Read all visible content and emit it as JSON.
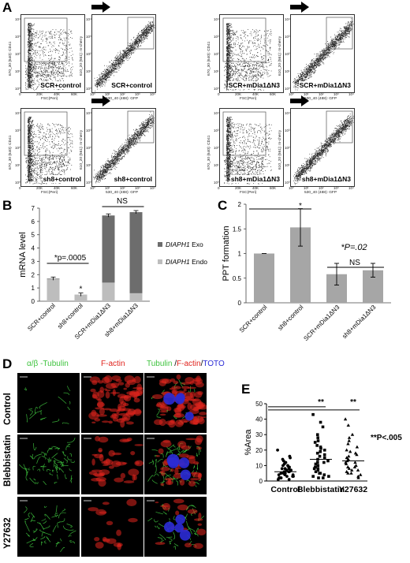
{
  "panels": {
    "A": "A",
    "B": "B",
    "C": "C",
    "D": "D",
    "E": "E"
  },
  "flow": {
    "left_plot": {
      "ylabel": "670_30 (640): CD41",
      "xlabel": "FSC(Peri)",
      "xticks": [
        "0",
        "20K",
        "40K",
        "60K"
      ],
      "yticks": [
        "10⁰",
        "10¹",
        "10²",
        "10³",
        "10⁴"
      ]
    },
    "right_plot": {
      "ylabel": "610_20 (561): m-cherry",
      "xlabel": "530_40 (488): GFP",
      "ticks": [
        "10⁰",
        "10¹",
        "10²",
        "10³",
        "10⁴"
      ]
    },
    "labels": [
      "SCR+control",
      "SCR+mDia1ΔN3",
      "sh8+control",
      "sh8+mDia1ΔN3"
    ]
  },
  "chart_data": [
    {
      "type": "bar",
      "panel": "B",
      "categories": [
        "SCR+control",
        "sh8+control",
        "SCR+mDia1ΔN3",
        "sh8+mDia1ΔN3"
      ],
      "series": [
        {
          "name": "DIAPH1 Endo",
          "values": [
            1.65,
            0.5,
            1.4,
            0.6
          ]
        },
        {
          "name": "DIAPH1 Exo",
          "values": [
            0.05,
            0.0,
            5.05,
            6.1
          ]
        }
      ],
      "ylabel": "mRNA level",
      "ylim": [
        0,
        7
      ],
      "yticks": [
        0,
        1,
        2,
        3,
        4,
        5,
        6,
        7
      ],
      "annotations": [
        "*p=.0005",
        "*",
        "NS"
      ],
      "legend_position": "right"
    },
    {
      "type": "bar",
      "panel": "C",
      "categories": [
        "SCR+control",
        "sh8+control",
        "SCR+mDia1ΔN3",
        "sh8+mDia1ΔN3"
      ],
      "values": [
        1.0,
        1.53,
        0.58,
        0.66
      ],
      "errors": [
        0.0,
        0.38,
        0.22,
        0.14
      ],
      "ylabel": "PPT formation",
      "ylim": [
        0,
        2
      ],
      "yticks": [
        0,
        0.5,
        1,
        1.5,
        2
      ],
      "annotations": [
        "*",
        "*P=.02",
        "NS"
      ]
    },
    {
      "type": "scatter",
      "panel": "E",
      "categories": [
        "Control",
        "Blebbistatin",
        "Y27632"
      ],
      "ylabel": "%Area",
      "ylim": [
        0,
        50
      ],
      "yticks": [
        0,
        10,
        20,
        30,
        40,
        50
      ],
      "means": [
        6,
        14,
        13
      ],
      "series": [
        {
          "category": "Control",
          "marker": "circle",
          "values": [
            20,
            16,
            15,
            14,
            13,
            12,
            12,
            11,
            10,
            10,
            9,
            9,
            8,
            8,
            8,
            7,
            7,
            7,
            6,
            6,
            6,
            5,
            5,
            5,
            4,
            4,
            4,
            3,
            3,
            3,
            2,
            2,
            2,
            1,
            1
          ]
        },
        {
          "category": "Blebbistatin",
          "marker": "square",
          "values": [
            43,
            38,
            35,
            30,
            28,
            26,
            25,
            23,
            22,
            21,
            20,
            19,
            18,
            17,
            16,
            15,
            14,
            13,
            12,
            12,
            11,
            10,
            9,
            8,
            8,
            7,
            6,
            5,
            5,
            4,
            3,
            3,
            2,
            2
          ]
        },
        {
          "category": "Y27632",
          "marker": "triangle",
          "values": [
            40,
            36,
            30,
            28,
            26,
            24,
            22,
            20,
            19,
            18,
            17,
            16,
            15,
            14,
            13,
            12,
            12,
            11,
            10,
            9,
            9,
            8,
            7,
            7,
            6,
            5,
            5,
            4,
            3,
            2
          ]
        }
      ],
      "annotations": [
        "**",
        "**",
        "**P<.005"
      ]
    }
  ],
  "chart_text": {
    "B": {
      "ylabel": "mRNA level",
      "pval": "*p=.0005",
      "star": "*",
      "ns": "NS",
      "legend": [
        {
          "italic": "DIAPH1",
          "rest": " Exo",
          "color": "#6d6d6d"
        },
        {
          "italic": "DIAPH1",
          "rest": " Endo",
          "color": "#bdbdbd"
        }
      ]
    },
    "C": {
      "ylabel": "PPT formation",
      "pval": "*P=.02",
      "star": "*",
      "ns": "NS"
    },
    "E": {
      "ylabel": "%Area",
      "stars1": "**",
      "stars2": "**",
      "pval": "**P<.005"
    }
  },
  "micro": {
    "columns": [
      {
        "parts": [
          {
            "text": "α/β -Tubulin",
            "color": "#3ec33e"
          }
        ]
      },
      {
        "parts": [
          {
            "text": "F-actin",
            "color": "#e0241e"
          }
        ]
      },
      {
        "parts": [
          {
            "text": "Tubulin ",
            "color": "#3ec33e"
          },
          {
            "text": "/",
            "color": "#000000"
          },
          {
            "text": "F-actin",
            "color": "#e0241e"
          },
          {
            "text": "/",
            "color": "#000000"
          },
          {
            "text": "TOTO",
            "color": "#2b2bd6"
          }
        ]
      }
    ],
    "rows": [
      "Control",
      "Blebbistatin",
      "Y27632"
    ]
  },
  "colors": {
    "bar_dark": "#6d6d6d",
    "bar_light": "#bdbdbd",
    "bar_c": "#a6a6a6",
    "green": "#3ec33e",
    "red": "#e0241e",
    "blue": "#2b2bd6"
  }
}
